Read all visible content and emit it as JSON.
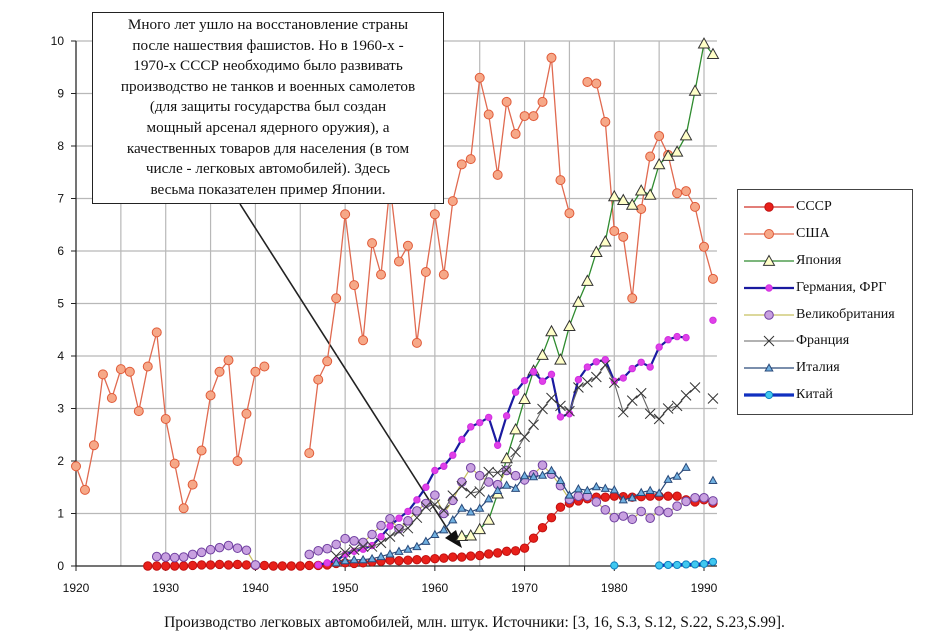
{
  "chart_data": {
    "type": "line",
    "title": "",
    "xlabel": "",
    "ylabel": "",
    "xlim": [
      1920,
      1991
    ],
    "ylim": [
      0,
      10
    ],
    "x_ticks": [
      1920,
      1930,
      1940,
      1950,
      1960,
      1970,
      1980,
      1990
    ],
    "y_ticks": [
      0,
      1,
      2,
      3,
      4,
      5,
      6,
      7,
      8,
      9,
      10
    ],
    "grid": true,
    "legend_position": "right",
    "series": [
      {
        "name": "СССР",
        "key": "ussr",
        "start": 1928,
        "color": "#e0201c",
        "values": [
          0,
          0,
          0,
          0,
          0,
          0.01,
          0.02,
          0.02,
          0.03,
          0.02,
          0.03,
          0.02,
          0.01,
          0.01,
          0,
          0,
          0,
          0,
          0.01,
          0.01,
          0.02,
          0.05,
          0.06,
          0.05,
          0.06,
          0.08,
          0.09,
          0.11,
          0.1,
          0.11,
          0.12,
          0.12,
          0.14,
          0.15,
          0.17,
          0.17,
          0.19,
          0.2,
          0.23,
          0.25,
          0.28,
          0.29,
          0.34,
          0.53,
          0.73,
          0.92,
          1.12,
          1.2,
          1.24,
          1.28,
          1.31,
          1.31,
          1.33,
          1.32,
          1.31,
          1.32,
          1.33,
          1.33,
          1.33,
          1.33,
          1.26,
          1.22,
          1.26,
          1.2
        ]
      },
      {
        "name": "США",
        "key": "usa",
        "start": 1920,
        "color": "#e0603c",
        "values": [
          1.9,
          1.45,
          2.3,
          3.65,
          3.2,
          3.75,
          3.7,
          2.95,
          3.8,
          4.45,
          2.8,
          1.95,
          1.1,
          1.55,
          2.2,
          3.25,
          3.7,
          3.92,
          2.0,
          2.9,
          3.7,
          3.8,
          null,
          null,
          null,
          null,
          2.15,
          3.55,
          3.9,
          5.1,
          6.7,
          5.35,
          4.3,
          6.15,
          5.55,
          7.25,
          5.8,
          6.1,
          4.25,
          5.6,
          6.7,
          5.55,
          6.95,
          7.65,
          7.75,
          9.3,
          8.6,
          7.45,
          8.84,
          8.23,
          8.57,
          8.57,
          8.84,
          9.68,
          7.35,
          6.72,
          null,
          9.22,
          9.19,
          8.46,
          6.38,
          6.27,
          5.1,
          6.8,
          7.8,
          8.19,
          7.83,
          7.1,
          7.14,
          6.84,
          6.08,
          5.47
        ]
      },
      {
        "name": "Япония",
        "key": "japan",
        "start": 1963,
        "color": "#2e8b2e",
        "values": [
          0.57,
          0.58,
          0.7,
          0.88,
          1.38,
          2.05,
          2.6,
          3.18,
          3.72,
          4.02,
          4.47,
          3.93,
          4.57,
          5.03,
          5.43,
          5.98,
          6.18,
          7.04,
          6.97,
          6.88,
          7.15,
          7.07,
          7.65,
          7.81,
          7.89,
          8.2,
          9.05,
          9.95,
          9.75
        ]
      },
      {
        "name": "Германия,  ФРГ",
        "key": "germany",
        "start": 1947,
        "color": "#1a1aa0",
        "values": [
          0.02,
          0.06,
          0.1,
          0.22,
          0.28,
          0.32,
          0.39,
          0.56,
          0.76,
          0.91,
          1.04,
          1.26,
          1.5,
          1.82,
          1.9,
          2.11,
          2.41,
          2.65,
          2.73,
          2.83,
          2.3,
          2.86,
          3.31,
          3.53,
          3.7,
          3.52,
          3.65,
          2.84,
          2.9,
          3.55,
          3.79,
          3.89,
          3.93,
          3.52,
          3.58,
          3.76,
          3.88,
          3.79,
          4.17,
          4.31,
          4.37,
          4.35,
          null,
          null,
          4.68
        ]
      },
      {
        "name": "Великобритания",
        "key": "uk",
        "start": 1929,
        "color": "#b8b040",
        "values": [
          0.18,
          0.17,
          0.16,
          0.17,
          0.22,
          0.26,
          0.31,
          0.35,
          0.39,
          0.34,
          0.3,
          0.02,
          null,
          null,
          null,
          null,
          null,
          0.22,
          0.29,
          0.33,
          0.41,
          0.52,
          0.48,
          0.45,
          0.6,
          0.77,
          0.9,
          0.71,
          0.86,
          1.05,
          1.19,
          1.35,
          1.0,
          1.25,
          1.6,
          1.87,
          1.72,
          1.6,
          1.55,
          1.82,
          1.72,
          1.64,
          1.74,
          1.92,
          1.75,
          1.53,
          1.27,
          1.33,
          1.33,
          1.22,
          1.07,
          0.92,
          0.95,
          0.89,
          1.04,
          0.91,
          1.05,
          1.02,
          1.14,
          1.23,
          1.3,
          1.3,
          1.24
        ]
      },
      {
        "name": "Франция",
        "key": "france",
        "start": 1949,
        "color": "#555555",
        "values": [
          0.19,
          0.26,
          0.31,
          0.37,
          0.37,
          0.44,
          0.56,
          0.66,
          0.72,
          0.92,
          1.13,
          1.17,
          1.06,
          1.34,
          1.52,
          1.39,
          1.42,
          1.79,
          1.78,
          1.83,
          2.17,
          2.46,
          2.69,
          2.99,
          3.2,
          3.05,
          2.95,
          3.4,
          3.5,
          3.6,
          3.83,
          3.49,
          2.93,
          3.15,
          3.29,
          2.9,
          2.8,
          3.0,
          3.05,
          3.25,
          3.4,
          null,
          3.19
        ]
      },
      {
        "name": "Италия",
        "key": "italy",
        "start": 1949,
        "color": "#2a4a7a",
        "values": [
          0.06,
          0.1,
          0.12,
          0.12,
          0.14,
          0.18,
          0.23,
          0.28,
          0.32,
          0.37,
          0.47,
          0.6,
          0.69,
          0.88,
          1.1,
          1.03,
          1.1,
          1.28,
          1.44,
          1.54,
          1.48,
          1.72,
          1.7,
          1.73,
          1.82,
          1.63,
          1.35,
          1.47,
          1.44,
          1.51,
          1.48,
          1.45,
          1.26,
          1.3,
          1.4,
          1.44,
          1.39,
          1.65,
          1.71,
          1.88,
          null,
          null,
          1.63
        ]
      },
      {
        "name": "Китай",
        "key": "china",
        "start": 1980,
        "color": "#1030c0",
        "values": [
          0.01,
          null,
          null,
          null,
          null,
          0.01,
          0.02,
          0.02,
          0.03,
          0.03,
          0.04,
          0.08
        ]
      }
    ],
    "annotation_lines": [
      "Много лет ушло на восстановление страны",
      "после нашествия фашистов. Но в 1960-х  -",
      "1970-х СССР необходимо было развивать",
      "производство не танков и военных самолетов",
      "(для защиты государства был  создан",
      "мощный арсенал ядерного оружия), а",
      "качественных товаров для населения (в том",
      "числе - легковых автомобилей).  Здесь",
      "весьма показателен пример Японии."
    ],
    "caption": "Производство легковых автомобилей, млн. штук. Источники: [3, 16, S.3, S.12, S.22, S.23,S.99]."
  }
}
